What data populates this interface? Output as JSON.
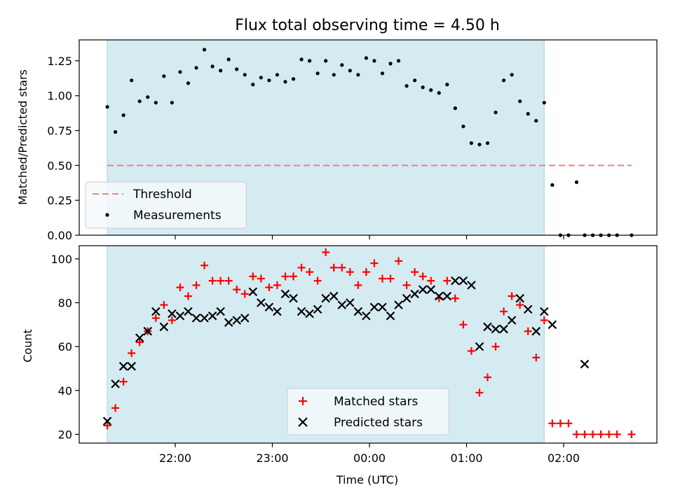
{
  "chart_data": {
    "type": "scatter",
    "title": "Flux total observing time = 4.50 h",
    "xlabel": "Time (UTC)",
    "x_ticks": [
      "22:00",
      "23:00",
      "00:00",
      "01:00",
      "02:00"
    ],
    "shaded_interval": {
      "start": "21:18",
      "end": "01:48",
      "color": "#d4ebf1"
    },
    "panels": [
      {
        "id": "ratio",
        "ylabel": "Matched/Predicted stars",
        "ylim": [
          0.0,
          1.4
        ],
        "y_ticks": [
          "0.00",
          "0.25",
          "0.50",
          "0.75",
          "1.00",
          "1.25"
        ],
        "legend": {
          "placement": "lower-left"
        },
        "threshold": {
          "name": "Threshold",
          "value": 0.5,
          "x_start": "21:18",
          "x_end": "02:42",
          "color": "#f08080"
        },
        "series": [
          {
            "name": "Measurements",
            "color": "#000000",
            "x": [
              "21:18",
              "21:23",
              "21:28",
              "21:33",
              "21:38",
              "21:43",
              "21:48",
              "21:53",
              "21:58",
              "22:03",
              "22:08",
              "22:13",
              "22:18",
              "22:23",
              "22:28",
              "22:33",
              "22:38",
              "22:43",
              "22:48",
              "22:53",
              "22:58",
              "23:03",
              "23:08",
              "23:13",
              "23:18",
              "23:23",
              "23:28",
              "23:33",
              "23:38",
              "23:43",
              "23:48",
              "23:53",
              "23:58",
              "00:03",
              "00:08",
              "00:13",
              "00:18",
              "00:23",
              "00:28",
              "00:33",
              "00:38",
              "00:43",
              "00:48",
              "00:53",
              "00:58",
              "01:03",
              "01:08",
              "01:13",
              "01:18",
              "01:23",
              "01:28",
              "01:33",
              "01:38",
              "01:43",
              "01:48",
              "01:53",
              "01:58",
              "02:03",
              "02:08",
              "02:13",
              "02:18",
              "02:23",
              "02:28",
              "02:33",
              "02:42"
            ],
            "y": [
              0.92,
              0.74,
              0.86,
              1.11,
              0.96,
              0.99,
              0.95,
              1.14,
              0.95,
              1.17,
              1.09,
              1.2,
              1.33,
              1.21,
              1.18,
              1.26,
              1.19,
              1.15,
              1.08,
              1.13,
              1.11,
              1.15,
              1.1,
              1.12,
              1.26,
              1.25,
              1.16,
              1.25,
              1.15,
              1.22,
              1.18,
              1.15,
              1.27,
              1.25,
              1.16,
              1.23,
              1.25,
              1.07,
              1.11,
              1.06,
              1.04,
              1.02,
              1.08,
              0.91,
              0.78,
              0.66,
              0.65,
              0.66,
              0.88,
              1.11,
              1.15,
              0.96,
              0.87,
              0.82,
              0.95,
              0.36,
              0.0,
              0.0,
              0.38,
              0.0,
              0.0,
              0.0,
              0.0,
              0.0,
              0.0
            ]
          }
        ]
      },
      {
        "id": "counts",
        "ylabel": "Count",
        "ylim": [
          16,
          106
        ],
        "y_ticks": [
          "20",
          "40",
          "60",
          "80",
          "100"
        ],
        "legend": {
          "placement": "lower-center"
        },
        "series": [
          {
            "name": "Matched stars",
            "marker": "plus",
            "color": "#ff0000",
            "x": [
              "21:18",
              "21:23",
              "21:28",
              "21:33",
              "21:38",
              "21:43",
              "21:48",
              "21:53",
              "21:58",
              "22:03",
              "22:08",
              "22:13",
              "22:18",
              "22:23",
              "22:28",
              "22:33",
              "22:38",
              "22:43",
              "22:48",
              "22:53",
              "22:58",
              "23:03",
              "23:08",
              "23:13",
              "23:18",
              "23:23",
              "23:28",
              "23:33",
              "23:38",
              "23:43",
              "23:48",
              "23:53",
              "23:58",
              "00:03",
              "00:08",
              "00:13",
              "00:18",
              "00:23",
              "00:28",
              "00:33",
              "00:38",
              "00:43",
              "00:48",
              "00:53",
              "00:58",
              "01:03",
              "01:08",
              "01:13",
              "01:18",
              "01:23",
              "01:28",
              "01:33",
              "01:38",
              "01:43",
              "01:48",
              "01:53",
              "01:58",
              "02:03",
              "02:08",
              "02:13",
              "02:18",
              "02:23",
              "02:28",
              "02:33",
              "02:42"
            ],
            "y": [
              24,
              32,
              44,
              57,
              62,
              67,
              73,
              79,
              72,
              87,
              83,
              88,
              97,
              90,
              90,
              90,
              86,
              84,
              92,
              91,
              87,
              88,
              92,
              92,
              96,
              94,
              90,
              103,
              96,
              96,
              94,
              88,
              94,
              98,
              91,
              91,
              99,
              88,
              94,
              92,
              90,
              82,
              90,
              82,
              70,
              58,
              39,
              46,
              60,
              76,
              83,
              79,
              67,
              55,
              72,
              25,
              25,
              25,
              20,
              20,
              20,
              20,
              20,
              20,
              20
            ]
          },
          {
            "name": "Predicted stars",
            "marker": "x",
            "color": "#000000",
            "x": [
              "21:18",
              "21:23",
              "21:28",
              "21:33",
              "21:38",
              "21:43",
              "21:48",
              "21:53",
              "21:58",
              "22:03",
              "22:08",
              "22:13",
              "22:18",
              "22:23",
              "22:28",
              "22:33",
              "22:38",
              "22:43",
              "22:48",
              "22:53",
              "22:58",
              "23:03",
              "23:08",
              "23:13",
              "23:18",
              "23:23",
              "23:28",
              "23:33",
              "23:38",
              "23:43",
              "23:48",
              "23:53",
              "23:58",
              "00:03",
              "00:08",
              "00:13",
              "00:18",
              "00:23",
              "00:28",
              "00:33",
              "00:38",
              "00:43",
              "00:48",
              "00:53",
              "00:58",
              "01:03",
              "01:08",
              "01:13",
              "01:18",
              "01:23",
              "01:28",
              "01:33",
              "01:38",
              "01:43",
              "01:48",
              "01:53",
              "02:13"
            ],
            "y": [
              26,
              43,
              51,
              51,
              64,
              67,
              76,
              69,
              75,
              74,
              76,
              73,
              73,
              74,
              76,
              71,
              72,
              73,
              85,
              80,
              78,
              76,
              84,
              82,
              76,
              75,
              77,
              82,
              83,
              79,
              80,
              76,
              74,
              78,
              78,
              74,
              79,
              82,
              84,
              86,
              86,
              83,
              83,
              90,
              90,
              88,
              60,
              69,
              68,
              68,
              72,
              82,
              77,
              67,
              76,
              70,
              52
            ]
          }
        ]
      }
    ]
  }
}
